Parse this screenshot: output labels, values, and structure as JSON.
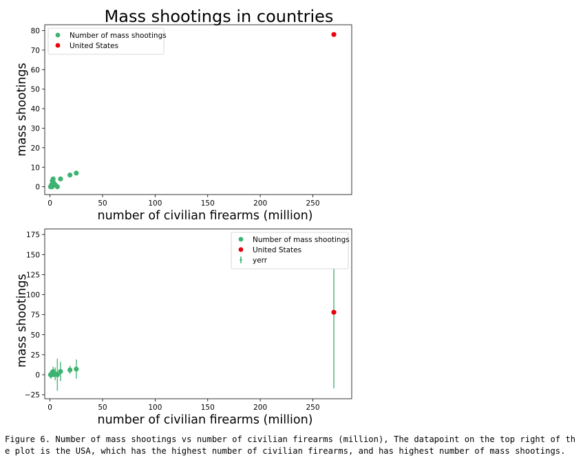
{
  "chart_data": [
    {
      "type": "scatter",
      "title": "Mass shootings in countries",
      "xlabel": "number of civilian firearms (million)",
      "ylabel": "mass shootings",
      "xlim": [
        -5,
        287
      ],
      "ylim": [
        -4,
        83
      ],
      "xticks": [
        0,
        50,
        100,
        150,
        200,
        250
      ],
      "yticks": [
        0,
        10,
        20,
        30,
        40,
        50,
        60,
        70,
        80
      ],
      "legend_position": "upper-left",
      "series": [
        {
          "name": "Number of mass shootings",
          "color": "#3cb371",
          "points": [
            [
              0.5,
              0
            ],
            [
              1,
              0
            ],
            [
              1.5,
              1
            ],
            [
              2,
              0
            ],
            [
              2.2,
              3
            ],
            [
              3,
              4
            ],
            [
              3.5,
              2
            ],
            [
              4,
              1
            ],
            [
              5,
              1
            ],
            [
              7,
              0
            ],
            [
              10,
              4
            ],
            [
              19,
              6
            ],
            [
              25,
              7
            ]
          ]
        },
        {
          "name": "United States",
          "color": "#e8000b",
          "points": [
            [
              270,
              78
            ]
          ]
        }
      ]
    },
    {
      "type": "scatter",
      "xlabel": "number of civilian firearms (million)",
      "ylabel": "mass shootings",
      "xlim": [
        -5,
        287
      ],
      "ylim": [
        -30,
        182
      ],
      "xticks": [
        0,
        50,
        100,
        150,
        200,
        250
      ],
      "yticks": [
        -25,
        0,
        25,
        50,
        75,
        100,
        125,
        150,
        175
      ],
      "legend_position": "upper-right",
      "series": [
        {
          "name": "Number of mass shootings",
          "color": "#3cb371",
          "points": [
            [
              0.5,
              0
            ],
            [
              1,
              0
            ],
            [
              1.5,
              1
            ],
            [
              2,
              0
            ],
            [
              2.2,
              3
            ],
            [
              3,
              4
            ],
            [
              3.5,
              2
            ],
            [
              4,
              1
            ],
            [
              5,
              1
            ],
            [
              7,
              0
            ],
            [
              10,
              4
            ],
            [
              19,
              6
            ],
            [
              25,
              7
            ]
          ]
        },
        {
          "name": "United States",
          "color": "#e8000b",
          "points": [
            [
              270,
              78
            ]
          ]
        },
        {
          "name": "yerr",
          "color": "#3cb371",
          "errorbars": [
            [
              0.5,
              0,
              4
            ],
            [
              1,
              0,
              5
            ],
            [
              2,
              0,
              3
            ],
            [
              3,
              4,
              6
            ],
            [
              4,
              1,
              4
            ],
            [
              5,
              1,
              8
            ],
            [
              7,
              0,
              20
            ],
            [
              10,
              4,
              12
            ],
            [
              19,
              6,
              5
            ],
            [
              25,
              7,
              12
            ],
            [
              270,
              78,
              95
            ]
          ]
        }
      ]
    }
  ],
  "caption": "Figure 6. Number of mass shootings vs number of civilian firearms (million), The datapoint on the top right of the plot is the USA, which has the highest number of civilian firearms, and has highest number of mass shootings."
}
